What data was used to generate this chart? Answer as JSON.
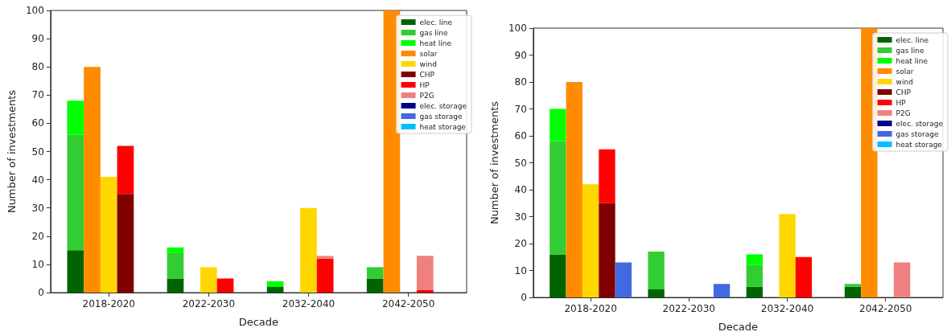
{
  "chart_data": [
    {
      "type": "bar",
      "stacked": true,
      "xlabel": "Decade",
      "ylabel": "Number of investments",
      "categories": [
        null,
        null,
        null,
        "2018-2020",
        null,
        null,
        null,
        null,
        null,
        "2022-2030",
        null,
        null,
        null,
        null,
        null,
        "2032-2040",
        null,
        null,
        null,
        null,
        null,
        "2042-2050",
        null,
        null,
        null
      ],
      "ylim": [
        0,
        100
      ],
      "yticks": [
        0,
        10,
        20,
        30,
        40,
        50,
        60,
        70,
        80,
        90,
        100
      ],
      "grid": false,
      "legend": "top right",
      "series": [
        {
          "name": "elec. line",
          "color": "#006400",
          "values": [
            null,
            15,
            null,
            null,
            null,
            null,
            null,
            5,
            null,
            null,
            null,
            null,
            null,
            2,
            null,
            null,
            null,
            null,
            null,
            5,
            null,
            null,
            null,
            null,
            null
          ]
        },
        {
          "name": "gas line",
          "color": "#32cd32",
          "values": [
            null,
            41,
            null,
            null,
            null,
            null,
            null,
            9,
            null,
            null,
            null,
            null,
            null,
            0,
            null,
            null,
            null,
            null,
            null,
            4,
            null,
            null,
            null,
            null,
            null
          ]
        },
        {
          "name": "heat line",
          "color": "#00ff00",
          "values": [
            null,
            12,
            null,
            null,
            null,
            null,
            null,
            2,
            null,
            null,
            null,
            null,
            null,
            2,
            null,
            null,
            null,
            null,
            null,
            0,
            null,
            null,
            null,
            null,
            null
          ]
        },
        {
          "name": "solar",
          "color": "#ff8c00",
          "values": [
            null,
            null,
            80,
            null,
            null,
            null,
            null,
            null,
            0,
            null,
            null,
            null,
            null,
            null,
            0,
            null,
            null,
            null,
            null,
            null,
            100,
            null,
            null,
            null,
            null
          ]
        },
        {
          "name": "wind",
          "color": "#ffd700",
          "values": [
            null,
            null,
            null,
            41,
            null,
            null,
            null,
            null,
            null,
            9,
            null,
            null,
            null,
            null,
            null,
            30,
            null,
            null,
            null,
            null,
            null,
            0,
            null,
            null,
            null
          ]
        },
        {
          "name": "CHP",
          "color": "#800000",
          "values": [
            null,
            null,
            null,
            null,
            35,
            null,
            null,
            null,
            null,
            null,
            0,
            null,
            null,
            null,
            null,
            null,
            0,
            null,
            null,
            null,
            null,
            null,
            0,
            null,
            null
          ]
        },
        {
          "name": "HP",
          "color": "#ff0000",
          "values": [
            null,
            null,
            null,
            null,
            17,
            null,
            null,
            null,
            null,
            null,
            5,
            null,
            null,
            null,
            null,
            null,
            12,
            null,
            null,
            null,
            null,
            null,
            1,
            null,
            null
          ]
        },
        {
          "name": "P2G",
          "color": "#f08080",
          "values": [
            null,
            null,
            null,
            null,
            0,
            null,
            null,
            null,
            null,
            null,
            0,
            null,
            null,
            null,
            null,
            null,
            1,
            null,
            null,
            null,
            null,
            null,
            12,
            null,
            null
          ]
        },
        {
          "name": "elec. storage",
          "color": "#00008b",
          "values": [
            null,
            null,
            null,
            null,
            null,
            0,
            null,
            null,
            null,
            null,
            null,
            0,
            null,
            null,
            null,
            null,
            null,
            0,
            null,
            null,
            null,
            null,
            null,
            0,
            null
          ]
        },
        {
          "name": "gas storage",
          "color": "#4169e1",
          "values": [
            null,
            null,
            null,
            null,
            null,
            0,
            null,
            null,
            null,
            null,
            null,
            0,
            null,
            null,
            null,
            null,
            null,
            0,
            null,
            null,
            null,
            null,
            null,
            0,
            null
          ]
        },
        {
          "name": "heat storage",
          "color": "#00bfff",
          "values": [
            null,
            null,
            null,
            null,
            null,
            0,
            null,
            null,
            null,
            null,
            null,
            0,
            null,
            null,
            null,
            null,
            null,
            0,
            null,
            null,
            null,
            null,
            null,
            0,
            null
          ]
        }
      ]
    },
    {
      "type": "bar",
      "stacked": true,
      "xlabel": "Decade",
      "ylabel": "Number of investments",
      "categories": [
        null,
        null,
        null,
        "2018-2020",
        null,
        null,
        null,
        null,
        null,
        "2022-2030",
        null,
        null,
        null,
        null,
        null,
        "2032-2040",
        null,
        null,
        null,
        null,
        null,
        "2042-2050",
        null,
        null,
        null
      ],
      "ylim": [
        0,
        100
      ],
      "yticks": [
        0,
        10,
        20,
        30,
        40,
        50,
        60,
        70,
        80,
        90,
        100
      ],
      "grid": false,
      "legend": "top right",
      "series": [
        {
          "name": "elec. line",
          "color": "#006400",
          "values": [
            null,
            16,
            null,
            null,
            null,
            null,
            null,
            3,
            null,
            null,
            null,
            null,
            null,
            4,
            null,
            null,
            null,
            null,
            null,
            4,
            null,
            null,
            null,
            null,
            null
          ]
        },
        {
          "name": "gas line",
          "color": "#32cd32",
          "values": [
            null,
            42,
            null,
            null,
            null,
            null,
            null,
            14,
            null,
            null,
            null,
            null,
            null,
            8,
            null,
            null,
            null,
            null,
            null,
            1,
            null,
            null,
            null,
            null,
            null
          ]
        },
        {
          "name": "heat line",
          "color": "#00ff00",
          "values": [
            null,
            12,
            null,
            null,
            null,
            null,
            null,
            0,
            null,
            null,
            null,
            null,
            null,
            4,
            null,
            null,
            null,
            null,
            null,
            0,
            null,
            null,
            null,
            null,
            null
          ]
        },
        {
          "name": "solar",
          "color": "#ff8c00",
          "values": [
            null,
            null,
            80,
            null,
            null,
            null,
            null,
            null,
            0,
            null,
            null,
            null,
            null,
            null,
            0,
            null,
            null,
            null,
            null,
            null,
            100,
            null,
            null,
            null,
            null
          ]
        },
        {
          "name": "wind",
          "color": "#ffd700",
          "values": [
            null,
            null,
            null,
            42,
            null,
            null,
            null,
            null,
            null,
            0,
            null,
            null,
            null,
            null,
            null,
            31,
            null,
            null,
            null,
            null,
            null,
            0,
            null,
            null,
            null
          ]
        },
        {
          "name": "CHP",
          "color": "#800000",
          "values": [
            null,
            null,
            null,
            null,
            35,
            null,
            null,
            null,
            null,
            null,
            0,
            null,
            null,
            null,
            null,
            null,
            0,
            null,
            null,
            null,
            null,
            null,
            0,
            null,
            null
          ]
        },
        {
          "name": "HP",
          "color": "#ff0000",
          "values": [
            null,
            null,
            null,
            null,
            20,
            null,
            null,
            null,
            null,
            null,
            0,
            null,
            null,
            null,
            null,
            null,
            15,
            null,
            null,
            null,
            null,
            null,
            0,
            null,
            null
          ]
        },
        {
          "name": "P2G",
          "color": "#f08080",
          "values": [
            null,
            null,
            null,
            null,
            0,
            null,
            null,
            null,
            null,
            null,
            0,
            null,
            null,
            null,
            null,
            null,
            0,
            null,
            null,
            null,
            null,
            null,
            13,
            null,
            null
          ]
        },
        {
          "name": "elec. storage",
          "color": "#00008b",
          "values": [
            null,
            null,
            null,
            null,
            null,
            0,
            null,
            null,
            null,
            null,
            null,
            0,
            null,
            null,
            null,
            null,
            null,
            0,
            null,
            null,
            null,
            null,
            null,
            0,
            null
          ]
        },
        {
          "name": "gas storage",
          "color": "#4169e1",
          "values": [
            null,
            null,
            null,
            null,
            null,
            13,
            null,
            null,
            null,
            null,
            null,
            5,
            null,
            null,
            null,
            null,
            null,
            0,
            null,
            null,
            null,
            null,
            null,
            0,
            null
          ]
        },
        {
          "name": "heat storage",
          "color": "#00bfff",
          "values": [
            null,
            null,
            null,
            null,
            null,
            0,
            null,
            null,
            null,
            null,
            null,
            0,
            null,
            null,
            null,
            null,
            null,
            0,
            null,
            null,
            null,
            null,
            null,
            0,
            null
          ]
        }
      ]
    }
  ]
}
